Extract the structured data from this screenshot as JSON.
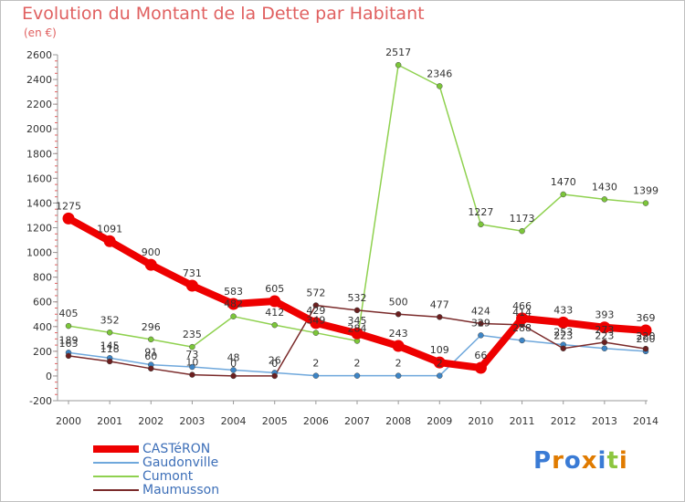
{
  "title": "Evolution du Montant de la Dette par Habitant",
  "subtitle": "(en €)",
  "logo": {
    "text": "Proxiti",
    "letters": [
      {
        "ch": "P",
        "color": "#3a7bd5"
      },
      {
        "ch": "r",
        "color": "#e07b00"
      },
      {
        "ch": "o",
        "color": "#3a7bd5"
      },
      {
        "ch": "x",
        "color": "#e07b00"
      },
      {
        "ch": "i",
        "color": "#3a7bd5"
      },
      {
        "ch": "t",
        "color": "#8cc63f"
      },
      {
        "ch": "i",
        "color": "#e07b00"
      }
    ]
  },
  "chart_data": {
    "type": "line",
    "title": "Evolution du Montant de la Dette par Habitant",
    "subtitle": "(en €)",
    "x": [
      "2000",
      "2001",
      "2002",
      "2003",
      "2004",
      "2005",
      "2006",
      "2007",
      "2008",
      "2009",
      "2010",
      "2011",
      "2012",
      "2013",
      "2014"
    ],
    "ylim": [
      -200,
      2600
    ],
    "yticks": [
      -200,
      0,
      200,
      400,
      600,
      800,
      1000,
      1200,
      1400,
      1600,
      1800,
      2000,
      2200,
      2400,
      2600
    ],
    "grid": false,
    "legend_position": "bottom-left",
    "series": [
      {
        "name": "CASTéRON",
        "color": "#ee0000",
        "marker": "#ee0000",
        "width": 8,
        "labels": true,
        "values": [
          1275,
          1091,
          900,
          731,
          583,
          605,
          429,
          345,
          243,
          109,
          66,
          466,
          433,
          393,
          369
        ]
      },
      {
        "name": "Gaudonville",
        "color": "#6fa8dc",
        "marker": "#3d85c6",
        "width": 1.5,
        "labels": true,
        "values": [
          189,
          145,
          91,
          73,
          48,
          26,
          2,
          2,
          2,
          2,
          329,
          288,
          253,
          223,
          200
        ]
      },
      {
        "name": "Cumont",
        "color": "#8fd14f",
        "marker": "#7cc63a",
        "width": 1.5,
        "labels": true,
        "values": [
          405,
          352,
          296,
          235,
          482,
          412,
          349,
          284,
          2517,
          2346,
          1227,
          1173,
          1470,
          1430,
          1399
        ]
      },
      {
        "name": "Maumusson",
        "color": "#7a2a2a",
        "marker": "#6b1f1f",
        "width": 1.5,
        "labels": true,
        "values": [
          163,
          118,
          60,
          10,
          0,
          0,
          572,
          532,
          500,
          477,
          424,
          414,
          223,
          273,
          220
        ]
      }
    ]
  }
}
